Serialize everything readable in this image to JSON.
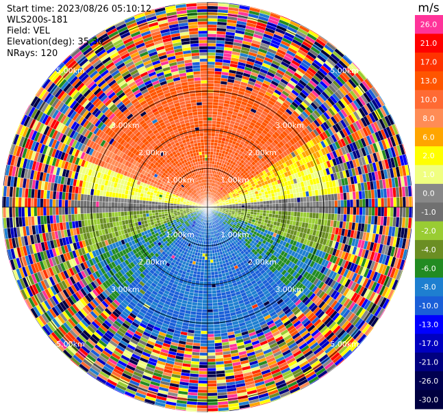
{
  "header": {
    "start_time": "Start time: 2023/08/26 05:10:12",
    "instrument": "WLS200s-181",
    "field": "Field: VEL",
    "elevation": "Elevation(deg): 35.30",
    "nrays": "NRays: 120"
  },
  "chart_data": {
    "type": "heatmap",
    "projection": "polar PPI scan",
    "field": "VEL",
    "units": "m/s",
    "n_rays": 120,
    "range_rings_km": [
      1.0,
      2.0,
      3.0,
      5.0
    ],
    "ring_labels": [
      "1.00km",
      "2.00km",
      "3.00km",
      "5.00km"
    ],
    "ring_label_diagonals": [
      "upper-left",
      "upper-right",
      "lower-left",
      "lower-right"
    ],
    "max_range_km": 5.3,
    "crosshair": true,
    "valid_range_km": 3.4,
    "wind_pattern": {
      "north_sector_ms": 13.0,
      "north_east_sector_ms": 6.0,
      "east_west_band_ms": 2.0,
      "zero_line_ms": 0.0,
      "south_west_sector_ms": -2.0,
      "south_sector_ms": -6.0,
      "far_south_sector_ms": -8.0
    },
    "colorbar": {
      "title": "m/s",
      "ticks": [
        "26.0",
        "21.0",
        "17.0",
        "13.0",
        "10.0",
        "8.0",
        "6.0",
        "2.0",
        "1.0",
        "0.0",
        "-1.0",
        "-2.0",
        "-4.0",
        "-6.0",
        "-8.0",
        "-10.0",
        "-13.0",
        "-17.0",
        "-21.0",
        "-26.0",
        "-30.0"
      ],
      "colors": [
        "#ff3399",
        "#ff0000",
        "#ff3300",
        "#ff5500",
        "#ff6a33",
        "#ff8c55",
        "#ffa500",
        "#ffff00",
        "#f0ff80",
        "#888888",
        "#707070",
        "#99cc33",
        "#6b8e23",
        "#228b22",
        "#1e7fd0",
        "#1a5fd8",
        "#0000ff",
        "#0000c0",
        "#000080",
        "#000050",
        "#000040"
      ]
    }
  }
}
